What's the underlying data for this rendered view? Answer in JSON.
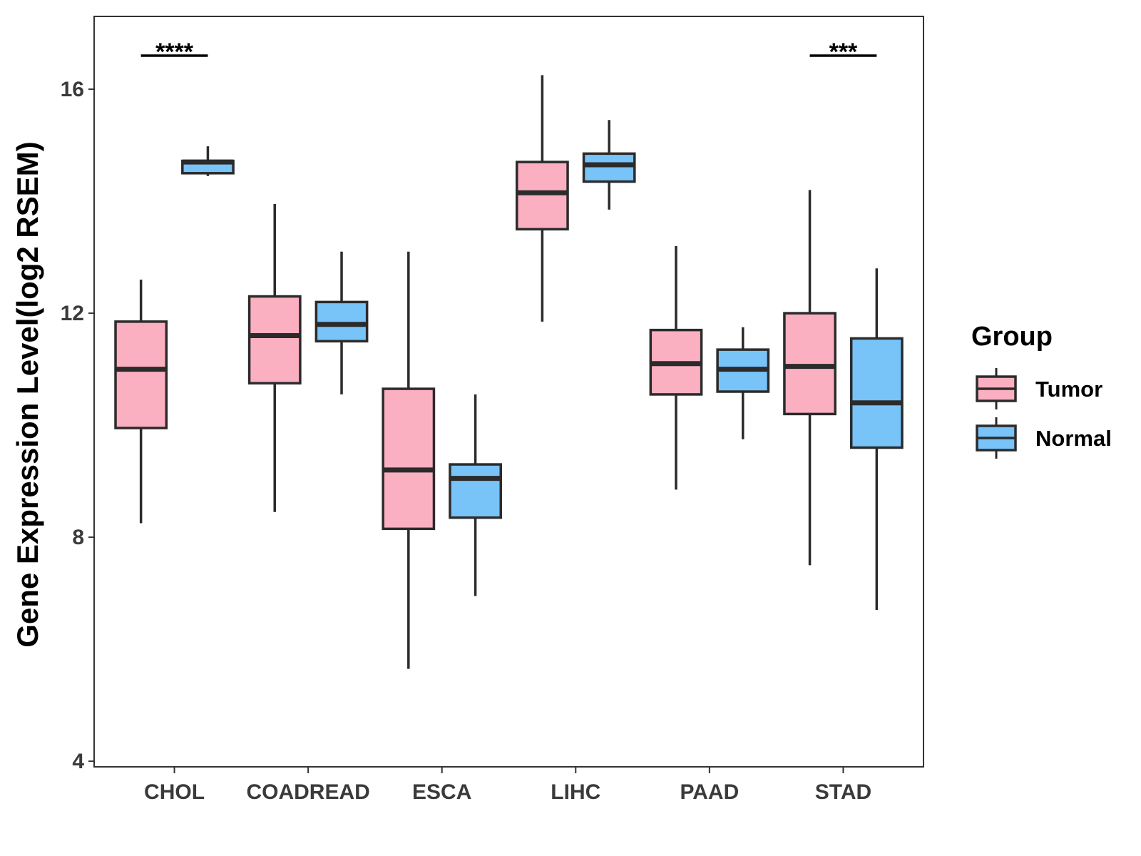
{
  "chart_data": {
    "type": "boxplot",
    "ylabel": "Gene Expression Level(log2 RSEM)",
    "xlabel": "",
    "ylim": [
      3.9,
      17.3
    ],
    "yticks": [
      4,
      8,
      12,
      16
    ],
    "categories": [
      "CHOL",
      "COADREAD",
      "ESCA",
      "LIHC",
      "PAAD",
      "STAD"
    ],
    "colors": {
      "Tumor": "#fbb0c2",
      "Normal": "#78c3f8",
      "stroke": "#2b2b2b"
    },
    "series": [
      {
        "name": "Tumor",
        "boxes": [
          {
            "min": 8.25,
            "q1": 9.95,
            "median": 11.0,
            "q3": 11.85,
            "max": 12.6
          },
          {
            "min": 8.45,
            "q1": 10.75,
            "median": 11.6,
            "q3": 12.3,
            "max": 13.95
          },
          {
            "min": 5.65,
            "q1": 8.15,
            "median": 9.2,
            "q3": 10.65,
            "max": 13.1
          },
          {
            "min": 11.85,
            "q1": 13.5,
            "median": 14.15,
            "q3": 14.7,
            "max": 16.25
          },
          {
            "min": 8.85,
            "q1": 10.55,
            "median": 11.1,
            "q3": 11.7,
            "max": 13.2
          },
          {
            "min": 7.5,
            "q1": 10.2,
            "median": 11.05,
            "q3": 12.0,
            "max": 14.2
          }
        ]
      },
      {
        "name": "Normal",
        "boxes": [
          {
            "min": 14.45,
            "q1": 14.5,
            "median": 14.7,
            "q3": 14.72,
            "max": 14.98
          },
          {
            "min": 10.55,
            "q1": 11.5,
            "median": 11.8,
            "q3": 12.2,
            "max": 13.1
          },
          {
            "min": 6.95,
            "q1": 8.35,
            "median": 9.05,
            "q3": 9.3,
            "max": 10.55
          },
          {
            "min": 13.85,
            "q1": 14.35,
            "median": 14.65,
            "q3": 14.85,
            "max": 15.45
          },
          {
            "min": 9.75,
            "q1": 10.6,
            "median": 11.0,
            "q3": 11.35,
            "max": 11.75
          },
          {
            "min": 6.7,
            "q1": 9.6,
            "median": 10.4,
            "q3": 11.55,
            "max": 12.8
          }
        ]
      }
    ],
    "significance": [
      {
        "category": "CHOL",
        "label": "****",
        "y": 16.6
      },
      {
        "category": "STAD",
        "label": "***",
        "y": 16.6
      }
    ],
    "legend": {
      "title": "Group",
      "position": "right",
      "entries": [
        "Tumor",
        "Normal"
      ]
    }
  }
}
